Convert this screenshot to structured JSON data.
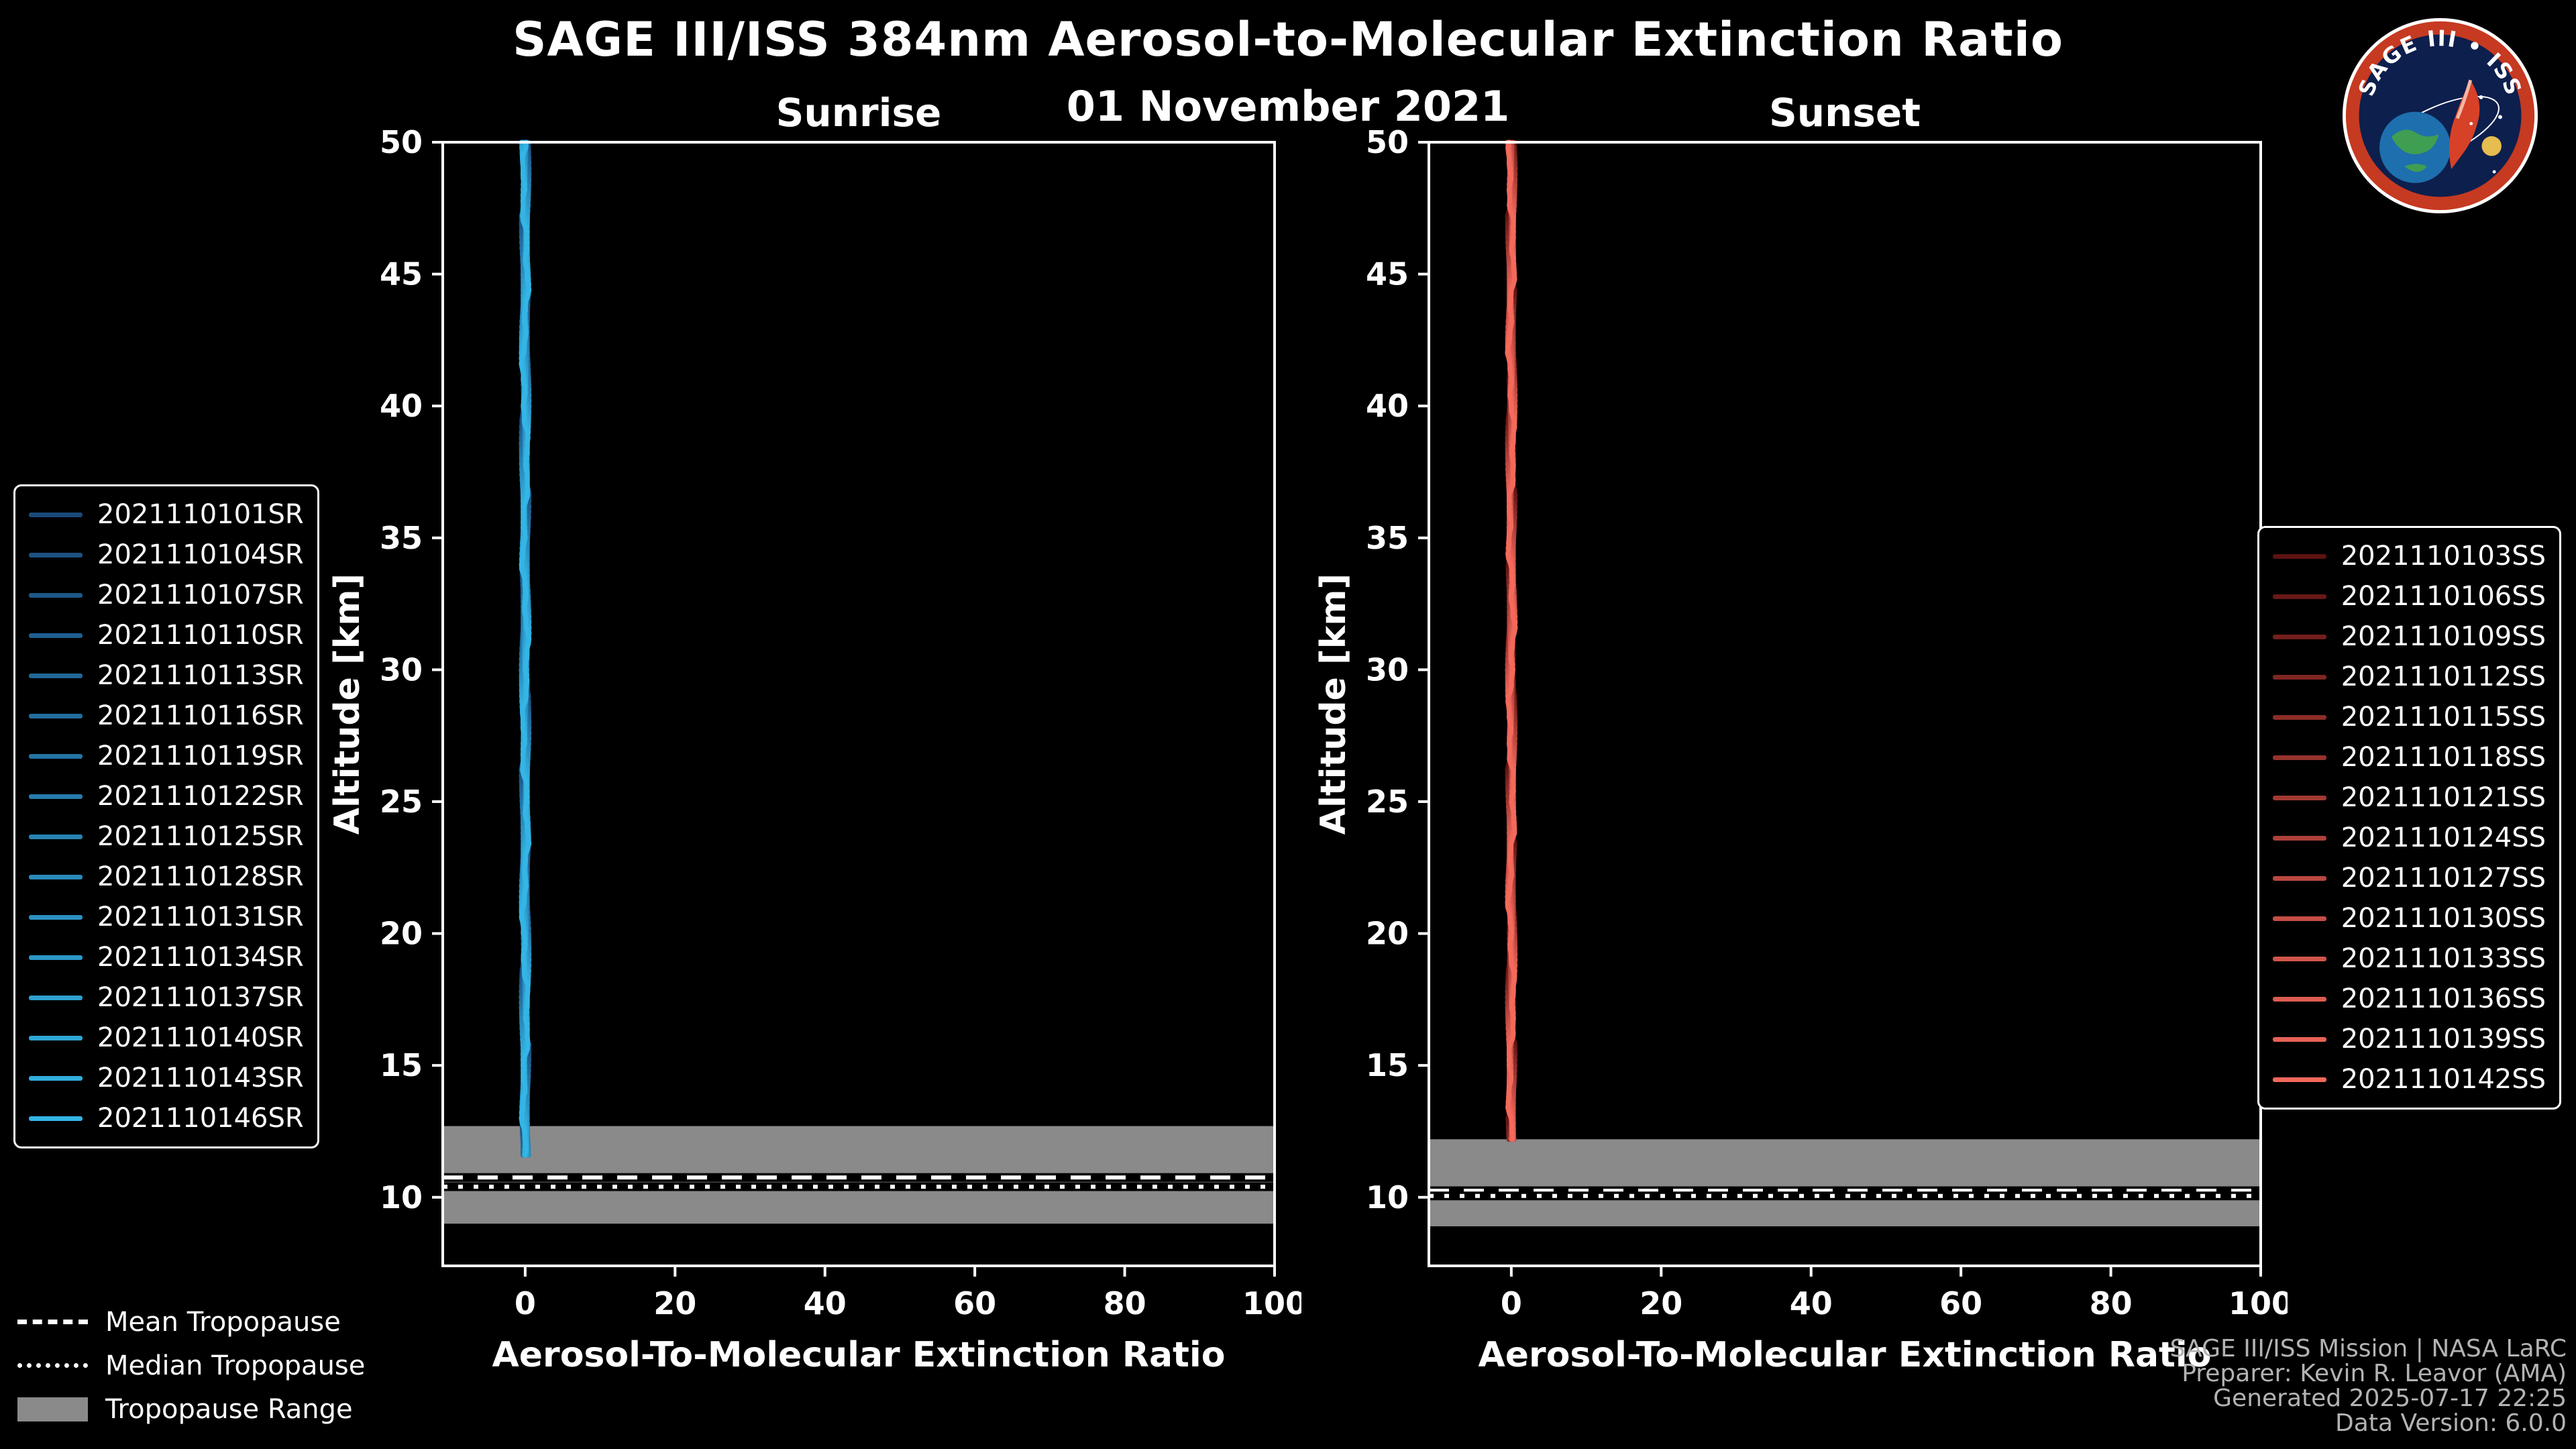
{
  "title": "SAGE III/ISS 384nm Aerosol-to-Molecular Extinction Ratio",
  "date": "01 November 2021",
  "logo": {
    "title": "SAGE III • ISS"
  },
  "tropopause_legend": {
    "mean": "Mean Tropopause",
    "median": "Median Tropopause",
    "range": "Tropopause Range"
  },
  "credits": [
    "SAGE III/ISS Mission | NASA LaRC",
    "Preparer: Kevin R. Leavor (AMA)",
    "Generated 2025-07-17 22:25",
    "Data Version: 6.0.0"
  ],
  "colors": {
    "background": "#000000",
    "axes": "#ffffff",
    "tropopause_band": "#8a8a8a",
    "sunrise_accent": "#33b5e5",
    "sunset_accent": "#f4695c"
  },
  "chart_data": [
    {
      "type": "line",
      "title": "Sunrise",
      "xlabel": "Aerosol-To-Molecular Extinction Ratio",
      "ylabel": "Altitude [km]",
      "xlim": [
        -11,
        100
      ],
      "ylim": [
        7.4,
        50
      ],
      "xticks": [
        0,
        20,
        40,
        60,
        80,
        100
      ],
      "yticks": [
        10,
        15,
        20,
        25,
        30,
        35,
        40,
        45,
        50
      ],
      "grid": false,
      "legend_position": "outside-left",
      "tropopause": {
        "mean": 10.75,
        "median": 10.4,
        "range": [
          9.0,
          12.7
        ]
      },
      "series": [
        {
          "name": "2021110101SR",
          "color": "#1a4a7a",
          "ratio": 0,
          "alt_min": 11.5,
          "alt_max": 50
        },
        {
          "name": "2021110104SR",
          "color": "#1c5181",
          "ratio": 0,
          "alt_min": 11.5,
          "alt_max": 50
        },
        {
          "name": "2021110107SR",
          "color": "#1d5888",
          "ratio": 0,
          "alt_min": 11.5,
          "alt_max": 50
        },
        {
          "name": "2021110110SR",
          "color": "#1f5f8f",
          "ratio": 0,
          "alt_min": 11.5,
          "alt_max": 50
        },
        {
          "name": "2021110113SR",
          "color": "#216797",
          "ratio": 0,
          "alt_min": 11.5,
          "alt_max": 50
        },
        {
          "name": "2021110116SR",
          "color": "#226e9e",
          "ratio": 0,
          "alt_min": 11.5,
          "alt_max": 50
        },
        {
          "name": "2021110119SR",
          "color": "#2475a5",
          "ratio": 0,
          "alt_min": 11.5,
          "alt_max": 50
        },
        {
          "name": "2021110122SR",
          "color": "#267cac",
          "ratio": 0,
          "alt_min": 11.5,
          "alt_max": 50
        },
        {
          "name": "2021110125SR",
          "color": "#2783b3",
          "ratio": 0,
          "alt_min": 11.5,
          "alt_max": 50
        },
        {
          "name": "2021110128SR",
          "color": "#298aba",
          "ratio": 0,
          "alt_min": 11.5,
          "alt_max": 50
        },
        {
          "name": "2021110131SR",
          "color": "#2b91c1",
          "ratio": 0,
          "alt_min": 11.5,
          "alt_max": 50
        },
        {
          "name": "2021110134SR",
          "color": "#2c98c8",
          "ratio": 0,
          "alt_min": 11.5,
          "alt_max": 50
        },
        {
          "name": "2021110137SR",
          "color": "#2ea0d0",
          "ratio": 0,
          "alt_min": 11.5,
          "alt_max": 50
        },
        {
          "name": "2021110140SR",
          "color": "#30a7d7",
          "ratio": 0,
          "alt_min": 11.5,
          "alt_max": 50
        },
        {
          "name": "2021110143SR",
          "color": "#31aede",
          "ratio": 0,
          "alt_min": 11.5,
          "alt_max": 50
        },
        {
          "name": "2021110146SR",
          "color": "#33b5e5",
          "ratio": 0,
          "alt_min": 11.5,
          "alt_max": 50
        }
      ]
    },
    {
      "type": "line",
      "title": "Sunset",
      "xlabel": "Aerosol-To-Molecular Extinction Ratio",
      "ylabel": "Altitude [km]",
      "xlim": [
        -11,
        100
      ],
      "ylim": [
        7.4,
        50
      ],
      "xticks": [
        0,
        20,
        40,
        60,
        80,
        100
      ],
      "yticks": [
        10,
        15,
        20,
        25,
        30,
        35,
        40,
        45,
        50
      ],
      "grid": false,
      "legend_position": "outside-right",
      "tropopause": {
        "mean": 10.25,
        "median": 10.05,
        "range": [
          8.9,
          12.2
        ]
      },
      "series": [
        {
          "name": "2021110103SS",
          "color": "#5c1210",
          "ratio": 0,
          "alt_min": 12.0,
          "alt_max": 50
        },
        {
          "name": "2021110106SS",
          "color": "#681916",
          "ratio": 0,
          "alt_min": 12.0,
          "alt_max": 50
        },
        {
          "name": "2021110109SS",
          "color": "#731f1c",
          "ratio": 0,
          "alt_min": 12.0,
          "alt_max": 50
        },
        {
          "name": "2021110112SS",
          "color": "#7f2622",
          "ratio": 0,
          "alt_min": 12.0,
          "alt_max": 50
        },
        {
          "name": "2021110115SS",
          "color": "#8b2d27",
          "ratio": 0,
          "alt_min": 12.0,
          "alt_max": 50
        },
        {
          "name": "2021110118SS",
          "color": "#96332d",
          "ratio": 0,
          "alt_min": 12.0,
          "alt_max": 50
        },
        {
          "name": "2021110121SS",
          "color": "#a23a33",
          "ratio": 0,
          "alt_min": 12.0,
          "alt_max": 50
        },
        {
          "name": "2021110124SS",
          "color": "#ae4139",
          "ratio": 0,
          "alt_min": 12.0,
          "alt_max": 50
        },
        {
          "name": "2021110127SS",
          "color": "#ba483f",
          "ratio": 0,
          "alt_min": 12.0,
          "alt_max": 50
        },
        {
          "name": "2021110130SS",
          "color": "#c54e45",
          "ratio": 0,
          "alt_min": 12.0,
          "alt_max": 50
        },
        {
          "name": "2021110133SS",
          "color": "#d1554a",
          "ratio": 0,
          "alt_min": 12.0,
          "alt_max": 50
        },
        {
          "name": "2021110136SS",
          "color": "#dd5c50",
          "ratio": 0,
          "alt_min": 12.0,
          "alt_max": 50
        },
        {
          "name": "2021110139SS",
          "color": "#e86256",
          "ratio": 0,
          "alt_min": 12.0,
          "alt_max": 50
        },
        {
          "name": "2021110142SS",
          "color": "#f4695c",
          "ratio": 0,
          "alt_min": 12.0,
          "alt_max": 50
        }
      ]
    }
  ]
}
